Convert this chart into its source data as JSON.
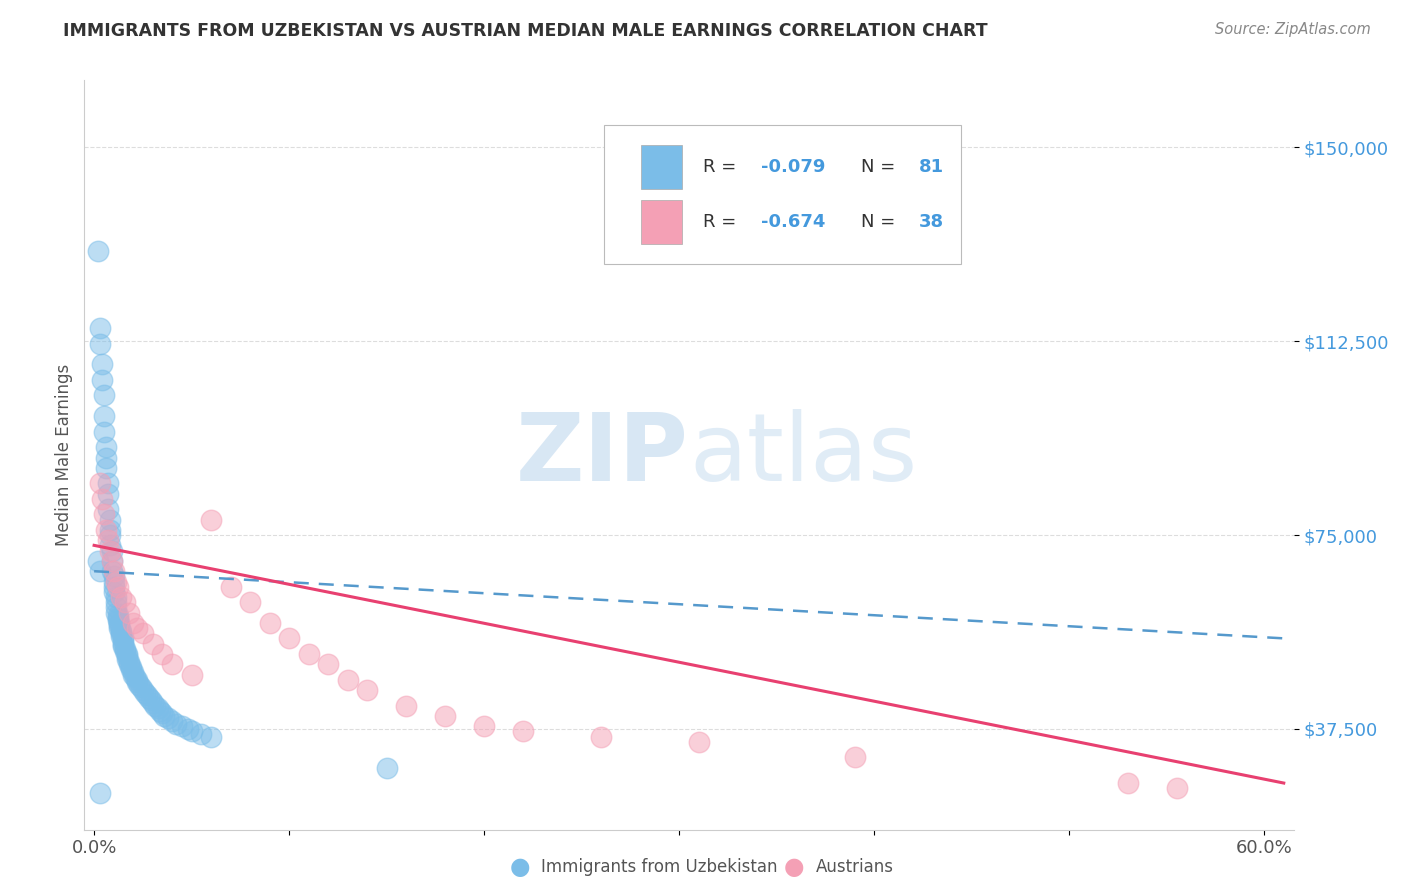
{
  "title": "IMMIGRANTS FROM UZBEKISTAN VS AUSTRIAN MEDIAN MALE EARNINGS CORRELATION CHART",
  "source": "Source: ZipAtlas.com",
  "ylabel": "Median Male Earnings",
  "xlim": [
    -0.005,
    0.615
  ],
  "ylim": [
    18000,
    163000
  ],
  "yticks": [
    37500,
    75000,
    112500,
    150000
  ],
  "ytick_labels": [
    "$37,500",
    "$75,000",
    "$112,500",
    "$150,000"
  ],
  "xtick_vals": [
    0.0,
    0.1,
    0.2,
    0.3,
    0.4,
    0.5,
    0.6
  ],
  "xtick_labels": [
    "0.0%",
    "",
    "",
    "",
    "",
    "",
    "60.0%"
  ],
  "legend_r1": "-0.079",
  "legend_n1": "81",
  "legend_r2": "-0.674",
  "legend_n2": "38",
  "blue_color": "#7bbde8",
  "pink_color": "#f4a0b5",
  "blue_line_color": "#5599cc",
  "pink_line_color": "#e84070",
  "title_color": "#333333",
  "source_color": "#888888",
  "ytick_color": "#4499dd",
  "xtick_color": "#555555",
  "grid_color": "#dddddd",
  "watermark_color": "#c8ddf0",
  "background_color": "#ffffff",
  "blue_scatter_x": [
    0.002,
    0.003,
    0.003,
    0.004,
    0.004,
    0.005,
    0.005,
    0.005,
    0.006,
    0.006,
    0.006,
    0.007,
    0.007,
    0.007,
    0.008,
    0.008,
    0.008,
    0.008,
    0.009,
    0.009,
    0.009,
    0.01,
    0.01,
    0.01,
    0.01,
    0.011,
    0.011,
    0.011,
    0.011,
    0.012,
    0.012,
    0.012,
    0.013,
    0.013,
    0.013,
    0.014,
    0.014,
    0.014,
    0.015,
    0.015,
    0.015,
    0.015,
    0.016,
    0.016,
    0.017,
    0.017,
    0.017,
    0.018,
    0.018,
    0.019,
    0.019,
    0.02,
    0.02,
    0.021,
    0.022,
    0.022,
    0.023,
    0.024,
    0.025,
    0.026,
    0.027,
    0.028,
    0.029,
    0.03,
    0.031,
    0.033,
    0.034,
    0.035,
    0.036,
    0.038,
    0.04,
    0.042,
    0.045,
    0.048,
    0.05,
    0.055,
    0.06,
    0.002,
    0.003,
    0.15,
    0.003
  ],
  "blue_scatter_y": [
    130000,
    115000,
    112000,
    108000,
    105000,
    102000,
    98000,
    95000,
    92000,
    90000,
    88000,
    85000,
    83000,
    80000,
    78000,
    76000,
    75000,
    73000,
    72000,
    70000,
    68000,
    67000,
    66000,
    65000,
    64000,
    63000,
    62000,
    61000,
    60000,
    59500,
    59000,
    58500,
    58000,
    57500,
    57000,
    56500,
    56000,
    55500,
    55000,
    54500,
    54000,
    53500,
    53000,
    52500,
    52000,
    51500,
    51000,
    50500,
    50000,
    49500,
    49000,
    48500,
    48000,
    47500,
    47000,
    46500,
    46000,
    45500,
    45000,
    44500,
    44000,
    43500,
    43000,
    42500,
    42000,
    41500,
    41000,
    40500,
    40000,
    39500,
    39000,
    38500,
    38000,
    37500,
    37000,
    36500,
    36000,
    70000,
    68000,
    30000,
    25000
  ],
  "pink_scatter_x": [
    0.003,
    0.004,
    0.005,
    0.006,
    0.007,
    0.008,
    0.009,
    0.01,
    0.011,
    0.012,
    0.014,
    0.016,
    0.018,
    0.02,
    0.022,
    0.025,
    0.03,
    0.035,
    0.04,
    0.05,
    0.06,
    0.07,
    0.08,
    0.09,
    0.1,
    0.11,
    0.12,
    0.13,
    0.14,
    0.16,
    0.18,
    0.2,
    0.22,
    0.26,
    0.31,
    0.39,
    0.53,
    0.555
  ],
  "pink_scatter_y": [
    85000,
    82000,
    79000,
    76000,
    74000,
    72000,
    70000,
    68000,
    66000,
    65000,
    63000,
    62000,
    60000,
    58000,
    57000,
    56000,
    54000,
    52000,
    50000,
    48000,
    78000,
    65000,
    62000,
    58000,
    55000,
    52000,
    50000,
    47000,
    45000,
    42000,
    40000,
    38000,
    37000,
    36000,
    35000,
    32000,
    27000,
    26000
  ]
}
